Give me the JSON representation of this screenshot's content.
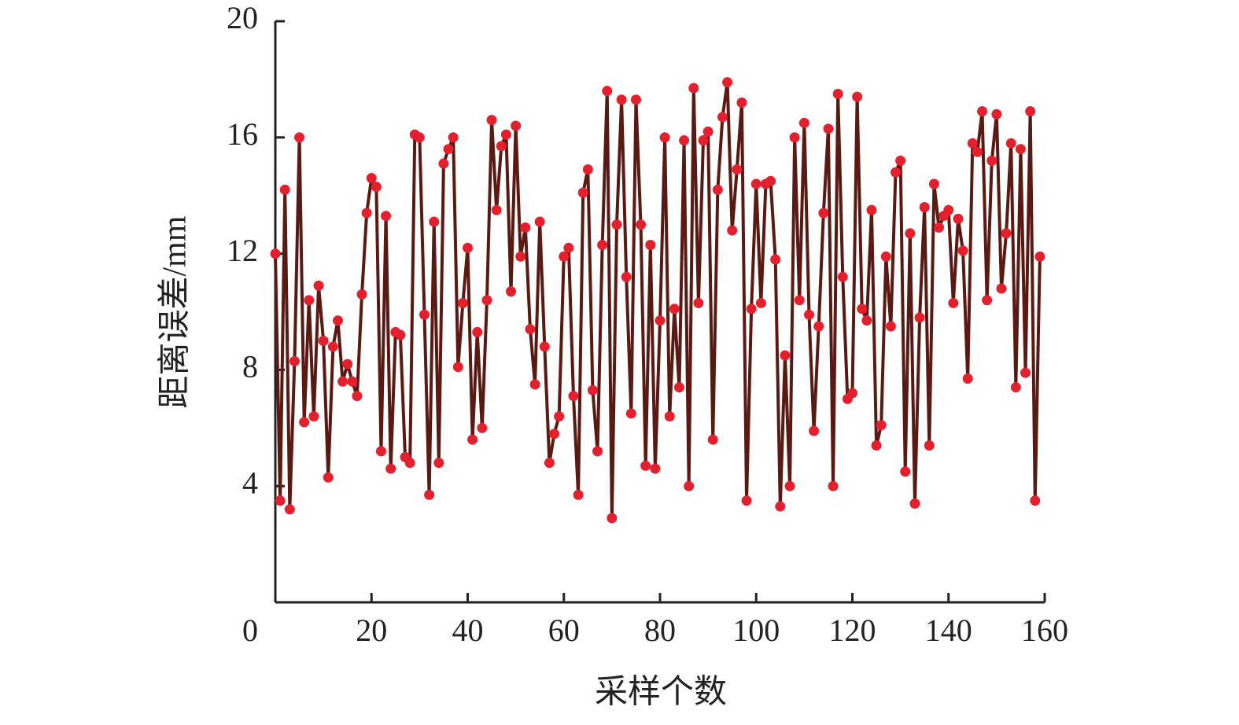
{
  "chart_data": {
    "type": "line",
    "x_label": "采样个数",
    "y_label": "距离误差/mm",
    "xlim": [
      0,
      160
    ],
    "xticks": [
      0,
      20,
      40,
      60,
      80,
      100,
      120,
      140,
      160
    ],
    "ylim": [
      0,
      20
    ],
    "yticks": [
      4,
      8,
      12,
      16,
      20
    ],
    "series": [
      {
        "color": "#5a1a14",
        "marker_color": "#e3202e",
        "x": [
          0,
          1,
          2,
          3,
          4,
          5,
          6,
          7,
          8,
          9,
          10,
          11,
          12,
          13,
          14,
          15,
          16,
          17,
          18,
          19,
          20,
          21,
          22,
          23,
          24,
          25,
          26,
          27,
          28,
          29,
          30,
          31,
          32,
          33,
          34,
          35,
          36,
          37,
          38,
          39,
          40,
          41,
          42,
          43,
          44,
          45,
          46,
          47,
          48,
          49,
          50,
          51,
          52,
          53,
          54,
          55,
          56,
          57,
          58,
          59,
          60,
          61,
          62,
          63,
          64,
          65,
          66,
          67,
          68,
          69,
          70,
          71,
          72,
          73,
          74,
          75,
          76,
          77,
          78,
          79,
          80,
          81,
          82,
          83,
          84,
          85,
          86,
          87,
          88,
          89,
          90,
          91,
          92,
          93,
          94,
          95,
          96,
          97,
          98,
          99,
          100,
          101,
          102,
          103,
          104,
          105,
          106,
          107,
          108,
          109,
          110,
          111,
          112,
          113,
          114,
          115,
          116,
          117,
          118,
          119,
          120,
          121,
          122,
          123,
          124,
          125,
          126,
          127,
          128,
          129,
          130,
          131,
          132,
          133,
          134,
          135,
          136,
          137,
          138,
          139,
          140,
          141,
          142,
          143,
          144,
          145,
          146,
          147,
          148,
          149,
          150,
          151,
          152,
          153,
          154,
          155,
          156,
          157,
          158,
          159
        ],
        "values": [
          12.0,
          3.5,
          14.2,
          3.2,
          8.3,
          16.0,
          6.2,
          10.4,
          6.4,
          10.9,
          9.0,
          4.3,
          8.8,
          9.7,
          7.6,
          8.2,
          7.6,
          7.1,
          10.6,
          13.4,
          14.6,
          14.3,
          5.2,
          13.3,
          4.6,
          9.3,
          9.2,
          5.0,
          4.8,
          16.1,
          16.0,
          9.9,
          3.7,
          13.1,
          4.8,
          15.1,
          15.6,
          16.0,
          8.1,
          10.3,
          12.2,
          5.6,
          9.3,
          6.0,
          10.4,
          16.6,
          13.5,
          15.7,
          16.1,
          10.7,
          16.4,
          11.9,
          12.9,
          9.4,
          7.5,
          13.1,
          8.8,
          4.8,
          5.8,
          6.4,
          11.9,
          12.2,
          7.1,
          3.7,
          14.1,
          14.9,
          7.3,
          5.2,
          12.3,
          17.6,
          2.9,
          13.0,
          17.3,
          11.2,
          6.5,
          17.3,
          13.0,
          4.7,
          12.3,
          4.6,
          9.7,
          16.0,
          6.4,
          10.1,
          7.4,
          15.9,
          4.0,
          17.7,
          10.3,
          15.9,
          16.2,
          5.6,
          14.2,
          16.7,
          17.9,
          12.8,
          14.9,
          17.2,
          3.5,
          10.1,
          14.4,
          10.3,
          14.4,
          14.5,
          11.8,
          3.3,
          8.5,
          4.0,
          16.0,
          10.4,
          16.5,
          9.9,
          5.9,
          9.5,
          13.4,
          16.3,
          4.0,
          17.5,
          11.2,
          7.0,
          7.2,
          17.4,
          10.1,
          9.7,
          13.5,
          5.4,
          6.1,
          11.9,
          9.5,
          14.8,
          15.2,
          4.5,
          12.7,
          3.4,
          9.8,
          13.6,
          5.4,
          14.4,
          12.9,
          13.3,
          13.5,
          10.3,
          13.2,
          12.1,
          7.7,
          15.8,
          15.5,
          16.9,
          10.4,
          15.2,
          16.8,
          10.8,
          12.7,
          15.8,
          7.4,
          15.6,
          7.9,
          16.9,
          3.5,
          11.9
        ]
      }
    ]
  }
}
